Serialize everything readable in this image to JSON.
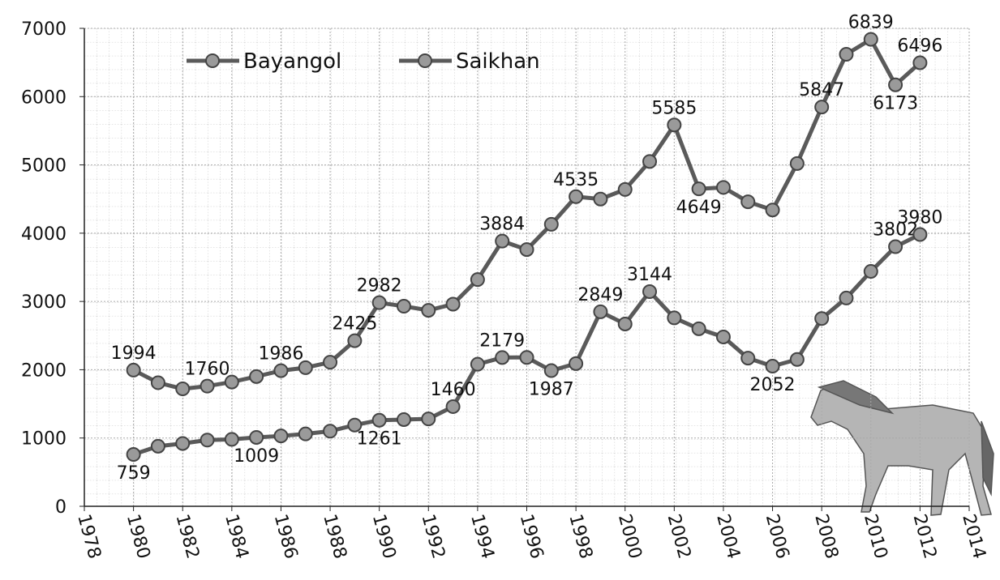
{
  "chart_data": {
    "type": "line",
    "x": [
      1980,
      1981,
      1982,
      1983,
      1984,
      1985,
      1986,
      1987,
      1988,
      1989,
      1990,
      1991,
      1992,
      1993,
      1994,
      1995,
      1996,
      1997,
      1998,
      1999,
      2000,
      2001,
      2002,
      2003,
      2004,
      2005,
      2006,
      2007,
      2008,
      2009,
      2010,
      2011,
      2012
    ],
    "series": [
      {
        "name": "Bayangol",
        "color": "#5a5a5a",
        "values": [
          1994,
          1810,
          1720,
          1760,
          1820,
          1900,
          1986,
          2030,
          2110,
          2425,
          2982,
          2930,
          2870,
          2960,
          3320,
          3884,
          3760,
          4130,
          4535,
          4500,
          4640,
          5050,
          5585,
          4649,
          4670,
          4460,
          4340,
          5020,
          5847,
          6620,
          6839,
          6173,
          6496
        ],
        "value_labels": [
          "1994",
          null,
          null,
          "1760",
          null,
          null,
          "1986",
          null,
          null,
          "2425",
          "2982",
          null,
          null,
          null,
          null,
          "3884",
          null,
          null,
          "4535",
          null,
          null,
          null,
          "5585",
          "4649",
          null,
          null,
          null,
          null,
          "5847",
          null,
          "6839",
          "6173",
          "6496"
        ]
      },
      {
        "name": "Saikhan",
        "color": "#5a5a5a",
        "values": [
          759,
          880,
          920,
          970,
          980,
          1009,
          1030,
          1060,
          1100,
          1190,
          1261,
          1270,
          1280,
          1460,
          2080,
          2179,
          2180,
          1987,
          2090,
          2849,
          2670,
          3144,
          2760,
          2600,
          2480,
          2170,
          2052,
          2150,
          2750,
          3050,
          3440,
          3802,
          3980
        ],
        "value_labels": [
          "759",
          null,
          null,
          null,
          null,
          "1009",
          null,
          null,
          null,
          null,
          "1261",
          null,
          null,
          "1460",
          null,
          "2179",
          null,
          "1987",
          null,
          "2849",
          null,
          "3144",
          null,
          null,
          null,
          null,
          "2052",
          null,
          null,
          null,
          null,
          "3802",
          "3980"
        ]
      }
    ],
    "xlim": [
      1978,
      2014
    ],
    "xticks": [
      1978,
      1980,
      1982,
      1984,
      1986,
      1988,
      1990,
      1992,
      1994,
      1996,
      1998,
      2000,
      2002,
      2004,
      2006,
      2008,
      2010,
      2012,
      2014
    ],
    "ylim": [
      0,
      7000
    ],
    "yticks": [
      0,
      1000,
      2000,
      3000,
      4000,
      5000,
      6000,
      7000
    ],
    "grid": true,
    "legend": "top-left"
  }
}
